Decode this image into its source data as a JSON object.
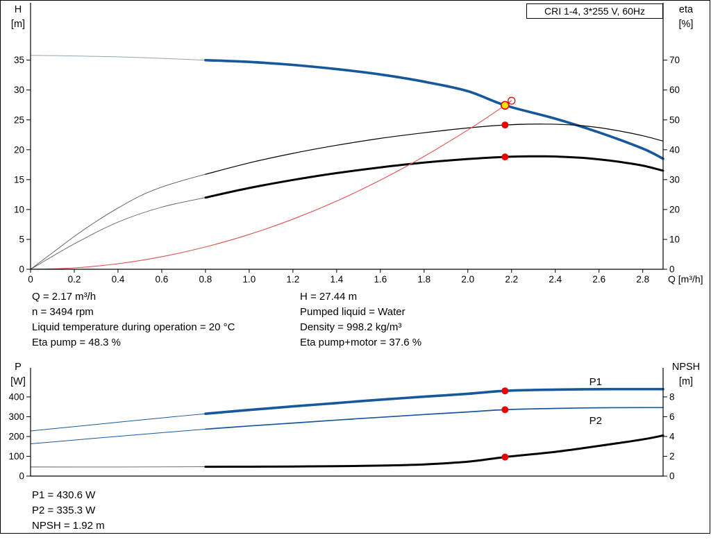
{
  "header": {
    "model_label": "CRI 1-4, 3*255 V, 60Hz"
  },
  "colors": {
    "blue": "#17579c",
    "black": "#000000",
    "red": "#e60000",
    "yellow": "#ffdf00",
    "gray": "#97a4af",
    "dark_gray": "#5a5a5a"
  },
  "info_panel": {
    "left": [
      "Q = 2.17 m³/h",
      "n = 3494 rpm",
      "Liquid temperature during operation = 20 °C",
      "Eta pump = 48.3 %"
    ],
    "right": [
      "H = 27.44 m",
      "Pumped liquid = Water",
      "Density = 998.2 kg/m³",
      "Eta pump+motor = 37.6 %"
    ]
  },
  "results_panel": [
    "P1 = 430.6 W",
    "P2 = 335.3 W",
    "NPSH = 1.92 m"
  ],
  "chart_data": [
    {
      "type": "line",
      "name": "qh-eta",
      "title": "",
      "x_axis": {
        "label": "Q [m³/h]",
        "range": [
          0,
          2.893
        ],
        "ticks": [
          0,
          0.2,
          0.4,
          0.6,
          0.8,
          1.0,
          1.2,
          1.4,
          1.6,
          1.8,
          2.0,
          2.2,
          2.4,
          2.6,
          2.8
        ],
        "tick_labels": [
          "0",
          "0.2",
          "0.4",
          "0.6",
          "0.8",
          "1.0",
          "1.2",
          "1.4",
          "1.6",
          "1.8",
          "2.0",
          "2.2",
          "2.4",
          "2.6",
          "2.8"
        ]
      },
      "left_axis": {
        "title": [
          "H",
          "[m]"
        ],
        "range": [
          0,
          44.6
        ],
        "ticks": [
          0,
          5,
          10,
          15,
          20,
          25,
          30,
          35
        ]
      },
      "right_axis": {
        "title": [
          "eta",
          "[%]"
        ],
        "range": [
          0,
          89.2
        ],
        "ticks": [
          0,
          10,
          20,
          30,
          40,
          50,
          60,
          70
        ]
      },
      "series": [
        {
          "name": "qh-curve-ext",
          "axis": "left",
          "color": "#97a4af",
          "width": 1,
          "x": [
            0,
            0.2,
            0.4,
            0.6,
            0.8
          ],
          "y": [
            35.8,
            35.7,
            35.55,
            35.3,
            35.0
          ]
        },
        {
          "name": "qh-curve",
          "axis": "left",
          "color": "#17579c",
          "width": 3.6,
          "x": [
            0.8,
            1.0,
            1.2,
            1.4,
            1.6,
            1.8,
            2.0,
            2.17,
            2.4,
            2.6,
            2.8,
            2.893
          ],
          "y": [
            35.0,
            34.7,
            34.2,
            33.5,
            32.6,
            31.4,
            29.8,
            27.44,
            25.2,
            22.9,
            20.2,
            18.5
          ]
        },
        {
          "name": "eta-pump-curve-ext",
          "axis": "right",
          "color": "#5a5a5a",
          "width": 0.9,
          "x": [
            0,
            0.1,
            0.2,
            0.3,
            0.4,
            0.5,
            0.6,
            0.7,
            0.8
          ],
          "y": [
            0,
            5.5,
            11,
            16,
            20.5,
            24.5,
            27.5,
            29.8,
            31.8
          ]
        },
        {
          "name": "eta-pump-curve",
          "axis": "right",
          "color": "#000000",
          "width": 1.2,
          "x": [
            0.8,
            1.0,
            1.2,
            1.4,
            1.6,
            1.8,
            2.0,
            2.17,
            2.35,
            2.5,
            2.6,
            2.7,
            2.8,
            2.893
          ],
          "y": [
            31.8,
            35.6,
            38.8,
            41.5,
            43.8,
            45.7,
            47.3,
            48.3,
            48.6,
            48.2,
            47.4,
            46.2,
            44.7,
            42.9
          ]
        },
        {
          "name": "eta-pump-motor-curve-ext",
          "axis": "right",
          "color": "#5a5a5a",
          "width": 0.9,
          "x": [
            0,
            0.2,
            0.4,
            0.6,
            0.8
          ],
          "y": [
            0,
            8.5,
            15.8,
            20.8,
            24.0
          ]
        },
        {
          "name": "eta-pump-motor-curve",
          "axis": "right",
          "color": "#000000",
          "width": 3,
          "x": [
            0.8,
            1.0,
            1.2,
            1.4,
            1.6,
            1.8,
            2.0,
            2.17,
            2.35,
            2.5,
            2.6,
            2.7,
            2.8,
            2.893
          ],
          "y": [
            24.0,
            27.2,
            29.9,
            32.2,
            34.1,
            35.7,
            36.9,
            37.6,
            37.8,
            37.4,
            36.8,
            35.9,
            34.7,
            33.0
          ]
        },
        {
          "name": "system-curve",
          "axis": "left",
          "color": "#e05050",
          "width": 1.1,
          "x": [
            0,
            0.2,
            0.4,
            0.6,
            0.8,
            1.0,
            1.2,
            1.4,
            1.6,
            1.8,
            2.0,
            2.1,
            2.2
          ],
          "y": [
            0,
            0.23,
            0.93,
            2.1,
            3.73,
            5.83,
            8.39,
            11.42,
            14.92,
            18.88,
            23.31,
            25.7,
            28.21
          ]
        }
      ],
      "markers": [
        {
          "type": "open-circle",
          "x": 2.2,
          "y": 28.21,
          "axis": "left"
        },
        {
          "type": "yellow-dot",
          "x": 2.17,
          "y": 27.44,
          "axis": "left"
        },
        {
          "type": "red-dot",
          "x": 2.17,
          "y": 48.3,
          "axis": "right"
        },
        {
          "type": "red-dot",
          "x": 2.17,
          "y": 37.6,
          "axis": "right"
        }
      ],
      "annotations": []
    },
    {
      "type": "line",
      "name": "power-npsh",
      "title": "",
      "x_axis": {
        "label": "",
        "range": [
          0,
          2.893
        ],
        "ticks": [],
        "tick_labels": []
      },
      "left_axis": {
        "title": [
          "P",
          "[W]"
        ],
        "range": [
          0,
          547
        ],
        "ticks": [
          0,
          100,
          200,
          300,
          400
        ]
      },
      "right_axis": {
        "title": [
          "NPSH",
          "[m]"
        ],
        "range": [
          0,
          10.94
        ],
        "ticks": [
          0,
          2,
          4,
          6,
          8
        ]
      },
      "series": [
        {
          "name": "p1-curve-ext",
          "axis": "left",
          "color": "#17579c",
          "width": 1,
          "x": [
            0,
            0.2,
            0.4,
            0.6,
            0.8
          ],
          "y": [
            228,
            250,
            272,
            294,
            315
          ]
        },
        {
          "name": "p1-curve",
          "axis": "left",
          "color": "#17579c",
          "width": 3.6,
          "x": [
            0.8,
            1.0,
            1.2,
            1.4,
            1.6,
            1.8,
            2.0,
            2.17,
            2.4,
            2.6,
            2.8,
            2.893
          ],
          "y": [
            315,
            334,
            352,
            369,
            386,
            401,
            416,
            430.6,
            437,
            439,
            439.5,
            439.5
          ]
        },
        {
          "name": "p2-curve-ext",
          "axis": "left",
          "color": "#17579c",
          "width": 1,
          "x": [
            0,
            0.2,
            0.4,
            0.6,
            0.8
          ],
          "y": [
            163,
            182,
            201,
            219,
            237
          ]
        },
        {
          "name": "p2-curve",
          "axis": "left",
          "color": "#17579c",
          "width": 1.7,
          "x": [
            0.8,
            1.0,
            1.2,
            1.4,
            1.6,
            1.8,
            2.0,
            2.17,
            2.4,
            2.6,
            2.8,
            2.893
          ],
          "y": [
            237,
            253,
            268,
            283,
            297,
            311,
            324,
            335.3,
            342,
            345,
            346,
            346
          ]
        },
        {
          "name": "npsh-curve-ext",
          "axis": "right",
          "color": "#5a5a5a",
          "width": 0.9,
          "x": [
            0,
            0.4,
            0.8
          ],
          "y": [
            0.92,
            0.92,
            0.94
          ]
        },
        {
          "name": "npsh-curve",
          "axis": "right",
          "color": "#000000",
          "width": 3,
          "x": [
            0.8,
            1.0,
            1.2,
            1.4,
            1.6,
            1.8,
            2.0,
            2.17,
            2.4,
            2.6,
            2.8,
            2.893
          ],
          "y": [
            0.94,
            0.95,
            0.97,
            1.0,
            1.06,
            1.18,
            1.45,
            1.92,
            2.45,
            3.05,
            3.7,
            4.1
          ]
        }
      ],
      "markers": [
        {
          "type": "red-dot",
          "x": 2.17,
          "y": 430.6,
          "axis": "left"
        },
        {
          "type": "red-dot",
          "x": 2.17,
          "y": 335.3,
          "axis": "left"
        },
        {
          "type": "red-dot",
          "x": 2.17,
          "y": 1.92,
          "axis": "right"
        }
      ],
      "annotations": [
        {
          "text": "P1",
          "x": 2.555,
          "y": 460,
          "axis": "left"
        },
        {
          "text": "P2",
          "x": 2.555,
          "y": 263,
          "axis": "left"
        }
      ]
    }
  ]
}
